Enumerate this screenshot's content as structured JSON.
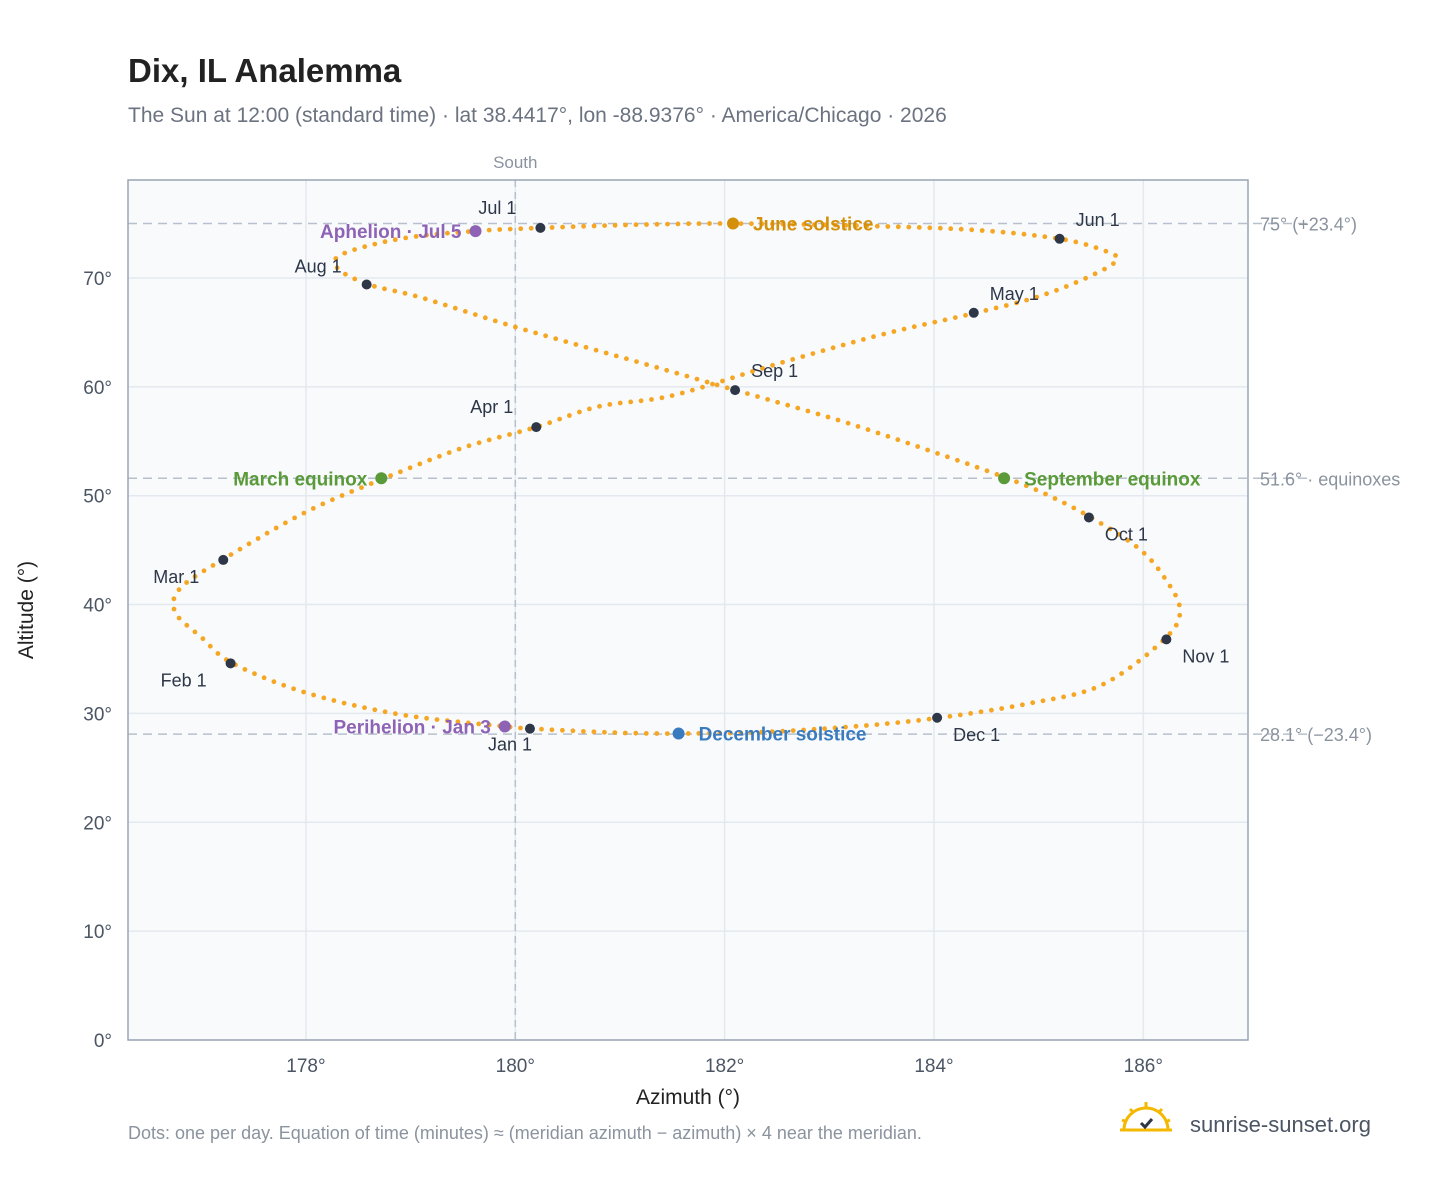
{
  "title": "Dix, IL Analemma",
  "subtitle": "The Sun at 12:00 (standard time) · lat 38.4417°, lon -88.9376° · America/Chicago · 2026",
  "footnote": "Dots: one per day. Equation of time (minutes) ≈ (meridian azimuth − azimuth) × 4 near the meridian.",
  "brand": {
    "name": "sunrise-sunset.org",
    "logo_icon": "sun-check-icon"
  },
  "colors": {
    "curve": "#f5a623",
    "month_marker": "#2d3748",
    "solstice_june": "#d4900a",
    "solstice_december": "#3a7bbf",
    "equinox": "#5a9a38",
    "apsis": "#8e63b5"
  },
  "chart_data": {
    "type": "scatter",
    "xlabel": "Azimuth (°)",
    "ylabel": "Altitude (°)",
    "xlim": [
      176.3,
      187.0
    ],
    "ylim": [
      0,
      79
    ],
    "xticks": [
      178,
      180,
      182,
      184,
      186
    ],
    "xtick_labels": [
      "178°",
      "180°",
      "182°",
      "184°",
      "186°"
    ],
    "yticks": [
      0,
      10,
      20,
      30,
      40,
      50,
      60,
      70
    ],
    "ytick_labels": [
      "0°",
      "10°",
      "20°",
      "30°",
      "40°",
      "50°",
      "60°",
      "70°"
    ],
    "grid": true,
    "meridian": {
      "azimuth": 180,
      "label": "South"
    },
    "reference_lines": [
      {
        "altitude": 75.0,
        "label": "75° (+23.4°)"
      },
      {
        "altitude": 51.6,
        "label": "51.6° · equinoxes"
      },
      {
        "altitude": 28.1,
        "label": "28.1° (−23.4°)"
      }
    ],
    "curve_anchors": [
      [
        180.15,
        28.6
      ],
      [
        180.9,
        28.25
      ],
      [
        181.55,
        28.15
      ],
      [
        182.4,
        28.3
      ],
      [
        183.3,
        28.85
      ],
      [
        184.05,
        29.6
      ],
      [
        184.9,
        30.9
      ],
      [
        185.6,
        32.6
      ],
      [
        186.2,
        36.8
      ],
      [
        186.35,
        39.5
      ],
      [
        186.2,
        42.5
      ],
      [
        185.95,
        45.2
      ],
      [
        185.5,
        48.0
      ],
      [
        185.1,
        50.0
      ],
      [
        184.7,
        51.6
      ],
      [
        184.0,
        54.0
      ],
      [
        183.1,
        56.9
      ],
      [
        182.1,
        59.7
      ],
      [
        181.2,
        62.2
      ],
      [
        180.0,
        65.5
      ],
      [
        179.1,
        68.2
      ],
      [
        178.6,
        69.4
      ],
      [
        178.3,
        70.9
      ],
      [
        178.35,
        72.2
      ],
      [
        178.9,
        73.6
      ],
      [
        179.6,
        74.3
      ],
      [
        180.25,
        74.6
      ],
      [
        181.2,
        74.9
      ],
      [
        182.1,
        75.0
      ],
      [
        183.3,
        74.8
      ],
      [
        184.4,
        74.4
      ],
      [
        185.2,
        73.6
      ],
      [
        185.6,
        72.6
      ],
      [
        185.75,
        71.7
      ],
      [
        185.5,
        70.2
      ],
      [
        185.0,
        68.3
      ],
      [
        184.4,
        66.8
      ],
      [
        183.5,
        64.8
      ],
      [
        182.5,
        62.1
      ],
      [
        181.5,
        59.2
      ],
      [
        180.8,
        58.2
      ],
      [
        180.2,
        56.3
      ],
      [
        179.5,
        54.4
      ],
      [
        178.75,
        51.6
      ],
      [
        178.0,
        48.5
      ],
      [
        177.2,
        44.1
      ],
      [
        176.8,
        41.5
      ],
      [
        176.75,
        39.3
      ],
      [
        177.0,
        37.0
      ],
      [
        177.3,
        34.6
      ],
      [
        178.0,
        31.9
      ],
      [
        178.9,
        29.9
      ],
      [
        179.9,
        28.8
      ],
      [
        180.15,
        28.6
      ]
    ],
    "month_markers": [
      {
        "label": "Jan 1",
        "azimuth": 180.14,
        "altitude": 28.6
      },
      {
        "label": "Feb 1",
        "azimuth": 177.28,
        "altitude": 34.6
      },
      {
        "label": "Mar 1",
        "azimuth": 177.21,
        "altitude": 44.1
      },
      {
        "label": "Apr 1",
        "azimuth": 180.2,
        "altitude": 56.3
      },
      {
        "label": "May 1",
        "azimuth": 184.38,
        "altitude": 66.8
      },
      {
        "label": "Jun 1",
        "azimuth": 185.2,
        "altitude": 73.6
      },
      {
        "label": "Jul 1",
        "azimuth": 180.24,
        "altitude": 74.6
      },
      {
        "label": "Aug 1",
        "azimuth": 178.58,
        "altitude": 69.4
      },
      {
        "label": "Sep 1",
        "azimuth": 182.1,
        "altitude": 59.7
      },
      {
        "label": "Oct 1",
        "azimuth": 185.48,
        "altitude": 48.0
      },
      {
        "label": "Nov 1",
        "azimuth": 186.22,
        "altitude": 36.8
      },
      {
        "label": "Dec 1",
        "azimuth": 184.03,
        "altitude": 29.6
      }
    ],
    "events": [
      {
        "label": "June solstice",
        "kind": "solstice_june",
        "azimuth": 182.08,
        "altitude": 75.0
      },
      {
        "label": "December solstice",
        "kind": "solstice_december",
        "azimuth": 181.56,
        "altitude": 28.15
      },
      {
        "label": "March equinox",
        "kind": "equinox",
        "azimuth": 178.72,
        "altitude": 51.6
      },
      {
        "label": "September equinox",
        "kind": "equinox",
        "azimuth": 184.67,
        "altitude": 51.6
      },
      {
        "label": "Aphelion · Jul 5",
        "kind": "apsis",
        "azimuth": 179.62,
        "altitude": 74.3
      },
      {
        "label": "Perihelion · Jan 3",
        "kind": "apsis",
        "azimuth": 179.9,
        "altitude": 28.8
      }
    ]
  }
}
